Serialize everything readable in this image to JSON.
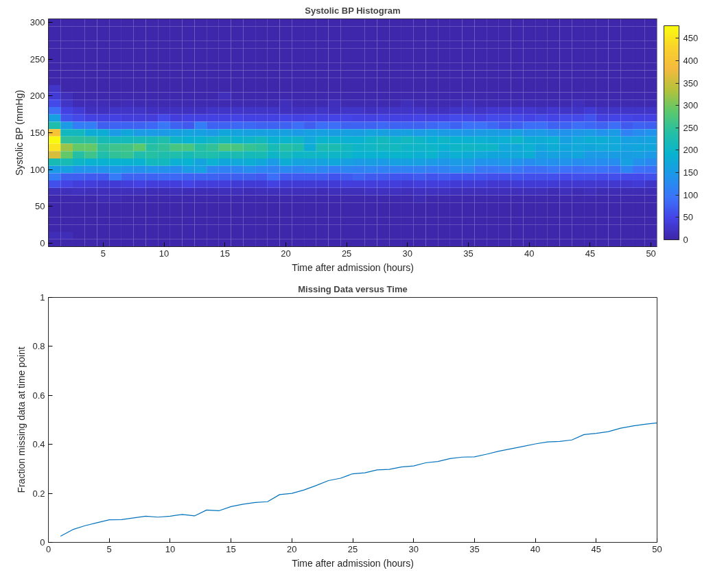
{
  "chart_data": [
    {
      "type": "heatmap",
      "title": "Systolic BP Histogram",
      "xlabel": "Time after admission (hours)",
      "ylabel": "Systolic BP (mmHg)",
      "x": [
        1,
        2,
        3,
        4,
        5,
        6,
        7,
        8,
        9,
        10,
        11,
        12,
        13,
        14,
        15,
        16,
        17,
        18,
        19,
        20,
        21,
        22,
        23,
        24,
        25,
        26,
        27,
        28,
        29,
        30,
        31,
        32,
        33,
        34,
        35,
        36,
        37,
        38,
        39,
        40,
        41,
        42,
        43,
        44,
        45,
        46,
        47,
        48,
        49,
        50
      ],
      "y": [
        300,
        290,
        280,
        270,
        260,
        250,
        240,
        230,
        220,
        210,
        200,
        190,
        180,
        170,
        160,
        150,
        140,
        130,
        120,
        110,
        100,
        90,
        80,
        70,
        60,
        50,
        40,
        30,
        20,
        10,
        0
      ],
      "cells": [
        [
          2,
          2,
          2,
          2,
          2,
          2,
          2,
          2,
          2,
          2,
          2,
          2,
          2,
          2,
          2,
          2,
          2,
          2,
          2,
          2,
          2,
          2,
          2,
          2,
          2,
          2,
          2,
          2,
          2,
          2,
          2,
          2,
          2,
          2,
          2,
          2,
          2,
          2,
          2,
          2,
          2,
          2,
          2,
          2,
          2,
          2,
          2,
          2,
          2,
          2
        ],
        [
          2,
          2,
          2,
          2,
          2,
          2,
          2,
          2,
          2,
          2,
          2,
          2,
          2,
          2,
          2,
          2,
          2,
          2,
          2,
          2,
          2,
          2,
          2,
          2,
          2,
          2,
          2,
          2,
          2,
          2,
          2,
          2,
          2,
          2,
          2,
          2,
          2,
          2,
          2,
          2,
          2,
          2,
          2,
          2,
          2,
          2,
          2,
          2,
          2,
          2
        ],
        [
          2,
          2,
          2,
          2,
          2,
          2,
          2,
          2,
          2,
          2,
          2,
          2,
          2,
          2,
          2,
          2,
          2,
          2,
          2,
          2,
          2,
          2,
          2,
          2,
          2,
          2,
          2,
          2,
          2,
          2,
          2,
          2,
          2,
          2,
          2,
          2,
          2,
          2,
          2,
          2,
          2,
          2,
          2,
          2,
          2,
          2,
          2,
          2,
          2,
          2
        ],
        [
          2,
          2,
          2,
          2,
          2,
          2,
          2,
          2,
          2,
          2,
          2,
          2,
          2,
          2,
          2,
          2,
          2,
          2,
          2,
          2,
          2,
          2,
          2,
          2,
          2,
          2,
          2,
          2,
          2,
          2,
          2,
          2,
          2,
          2,
          2,
          2,
          2,
          2,
          2,
          2,
          2,
          2,
          2,
          2,
          2,
          2,
          2,
          2,
          2,
          2
        ],
        [
          2,
          2,
          2,
          2,
          2,
          2,
          2,
          2,
          2,
          2,
          2,
          2,
          2,
          2,
          2,
          2,
          2,
          2,
          2,
          2,
          2,
          2,
          2,
          2,
          2,
          2,
          2,
          2,
          2,
          2,
          2,
          2,
          2,
          2,
          2,
          2,
          2,
          2,
          2,
          2,
          2,
          2,
          2,
          2,
          2,
          2,
          2,
          2,
          2,
          2
        ],
        [
          2,
          2,
          2,
          2,
          2,
          2,
          2,
          2,
          2,
          2,
          2,
          2,
          2,
          2,
          2,
          2,
          2,
          2,
          2,
          2,
          2,
          2,
          2,
          2,
          2,
          2,
          2,
          2,
          2,
          2,
          2,
          2,
          2,
          2,
          2,
          2,
          2,
          2,
          2,
          2,
          2,
          2,
          2,
          2,
          2,
          2,
          2,
          2,
          2,
          2
        ],
        [
          2,
          2,
          2,
          2,
          2,
          2,
          2,
          2,
          2,
          2,
          2,
          2,
          2,
          2,
          2,
          2,
          2,
          2,
          2,
          2,
          2,
          2,
          2,
          2,
          2,
          2,
          2,
          2,
          2,
          2,
          2,
          2,
          2,
          2,
          2,
          2,
          2,
          2,
          2,
          2,
          2,
          2,
          2,
          2,
          2,
          2,
          2,
          2,
          2,
          2
        ],
        [
          2,
          2,
          2,
          2,
          2,
          2,
          2,
          2,
          2,
          2,
          2,
          2,
          2,
          2,
          2,
          2,
          2,
          2,
          2,
          2,
          2,
          2,
          2,
          2,
          2,
          2,
          2,
          2,
          2,
          2,
          2,
          2,
          2,
          2,
          2,
          2,
          2,
          2,
          2,
          2,
          2,
          2,
          2,
          2,
          2,
          2,
          2,
          2,
          2,
          2
        ],
        [
          2,
          2,
          2,
          2,
          2,
          2,
          2,
          2,
          2,
          2,
          2,
          2,
          2,
          2,
          2,
          2,
          2,
          2,
          2,
          2,
          2,
          2,
          2,
          2,
          2,
          2,
          2,
          2,
          2,
          2,
          2,
          2,
          2,
          2,
          2,
          2,
          2,
          2,
          2,
          2,
          2,
          2,
          2,
          2,
          2,
          2,
          2,
          2,
          2,
          2
        ],
        [
          25,
          3,
          3,
          3,
          3,
          3,
          3,
          3,
          3,
          3,
          3,
          3,
          3,
          3,
          3,
          3,
          3,
          3,
          3,
          3,
          3,
          3,
          3,
          3,
          3,
          3,
          3,
          3,
          3,
          3,
          3,
          3,
          3,
          3,
          3,
          3,
          3,
          3,
          3,
          3,
          3,
          3,
          3,
          3,
          3,
          3,
          3,
          3,
          3,
          3
        ],
        [
          35,
          15,
          5,
          5,
          5,
          5,
          5,
          5,
          5,
          5,
          5,
          5,
          5,
          5,
          15,
          5,
          5,
          5,
          5,
          5,
          5,
          5,
          5,
          5,
          5,
          5,
          5,
          5,
          5,
          5,
          5,
          5,
          5,
          5,
          5,
          5,
          5,
          5,
          5,
          5,
          5,
          5,
          5,
          5,
          5,
          5,
          5,
          5,
          5,
          5
        ],
        [
          55,
          25,
          12,
          12,
          12,
          8,
          12,
          8,
          8,
          8,
          8,
          8,
          8,
          8,
          8,
          8,
          8,
          8,
          8,
          15,
          8,
          8,
          8,
          15,
          8,
          8,
          8,
          8,
          8,
          15,
          8,
          8,
          8,
          8,
          15,
          8,
          8,
          8,
          8,
          8,
          8,
          8,
          8,
          15,
          8,
          8,
          8,
          8,
          8,
          8
        ],
        [
          90,
          45,
          35,
          20,
          20,
          25,
          25,
          25,
          20,
          20,
          20,
          20,
          20,
          25,
          25,
          25,
          25,
          25,
          25,
          20,
          20,
          20,
          25,
          20,
          25,
          25,
          20,
          25,
          25,
          25,
          25,
          20,
          20,
          25,
          25,
          25,
          30,
          30,
          30,
          30,
          25,
          30,
          25,
          25,
          35,
          25,
          25,
          25,
          25,
          25
        ],
        [
          160,
          65,
          55,
          45,
          45,
          45,
          40,
          40,
          40,
          55,
          40,
          45,
          45,
          45,
          45,
          50,
          45,
          45,
          45,
          50,
          45,
          50,
          45,
          50,
          50,
          45,
          45,
          50,
          45,
          45,
          50,
          50,
          50,
          55,
          55,
          50,
          55,
          55,
          55,
          50,
          55,
          50,
          55,
          55,
          65,
          45,
          50,
          50,
          45,
          45
        ],
        [
          230,
          150,
          110,
          110,
          75,
          80,
          80,
          80,
          85,
          100,
          80,
          70,
          110,
          80,
          80,
          85,
          85,
          80,
          80,
          80,
          90,
          75,
          90,
          90,
          80,
          80,
          80,
          85,
          80,
          80,
          80,
          85,
          90,
          80,
          95,
          95,
          85,
          70,
          80,
          90,
          90,
          80,
          80,
          90,
          85,
          80,
          90,
          70,
          80,
          75
        ],
        [
          400,
          210,
          210,
          180,
          180,
          150,
          170,
          150,
          150,
          150,
          160,
          165,
          160,
          150,
          170,
          165,
          160,
          160,
          160,
          160,
          150,
          160,
          160,
          155,
          160,
          155,
          165,
          160,
          155,
          160,
          150,
          160,
          150,
          150,
          145,
          150,
          155,
          150,
          160,
          145,
          150,
          140,
          140,
          145,
          150,
          140,
          150,
          115,
          130,
          140
        ],
        [
          475,
          250,
          245,
          245,
          220,
          215,
          215,
          220,
          220,
          230,
          200,
          190,
          195,
          205,
          210,
          195,
          200,
          210,
          190,
          195,
          200,
          175,
          195,
          195,
          185,
          190,
          200,
          210,
          200,
          210,
          200,
          190,
          200,
          190,
          190,
          185,
          180,
          185,
          200,
          180,
          180,
          185,
          160,
          175,
          180,
          180,
          175,
          160,
          160,
          165
        ],
        [
          450,
          320,
          290,
          290,
          250,
          260,
          265,
          285,
          240,
          250,
          270,
          270,
          240,
          250,
          275,
          270,
          255,
          245,
          220,
          240,
          230,
          180,
          225,
          225,
          210,
          200,
          205,
          210,
          210,
          200,
          200,
          200,
          190,
          200,
          205,
          200,
          200,
          175,
          175,
          185,
          170,
          180,
          170,
          175,
          170,
          175,
          175,
          165,
          170,
          170
        ],
        [
          360,
          290,
          240,
          260,
          230,
          250,
          255,
          230,
          240,
          230,
          230,
          220,
          230,
          230,
          220,
          225,
          215,
          220,
          200,
          215,
          200,
          205,
          200,
          200,
          200,
          190,
          190,
          190,
          195,
          195,
          185,
          195,
          175,
          185,
          180,
          175,
          170,
          170,
          175,
          180,
          155,
          165,
          160,
          170,
          150,
          150,
          155,
          155,
          160,
          150
        ],
        [
          220,
          220,
          200,
          190,
          190,
          190,
          190,
          190,
          210,
          210,
          185,
          190,
          165,
          185,
          170,
          175,
          180,
          170,
          150,
          180,
          165,
          160,
          165,
          170,
          160,
          150,
          155,
          150,
          160,
          160,
          160,
          150,
          145,
          150,
          150,
          140,
          140,
          145,
          140,
          130,
          140,
          135,
          140,
          130,
          135,
          130,
          130,
          160,
          135,
          125
        ],
        [
          150,
          160,
          140,
          140,
          140,
          145,
          140,
          135,
          140,
          135,
          130,
          150,
          160,
          120,
          115,
          120,
          130,
          120,
          115,
          125,
          120,
          130,
          120,
          110,
          120,
          115,
          120,
          115,
          115,
          115,
          115,
          110,
          115,
          130,
          125,
          100,
          100,
          110,
          100,
          90,
          90,
          100,
          95,
          90,
          95,
          95,
          90,
          120,
          95,
          90
        ],
        [
          110,
          75,
          75,
          70,
          70,
          105,
          80,
          80,
          80,
          85,
          85,
          80,
          80,
          80,
          75,
          75,
          75,
          70,
          90,
          70,
          70,
          70,
          70,
          65,
          70,
          80,
          70,
          70,
          65,
          65,
          70,
          65,
          70,
          65,
          65,
          65,
          60,
          60,
          65,
          60,
          60,
          60,
          55,
          60,
          60,
          55,
          60,
          55,
          55,
          60
        ],
        [
          60,
          50,
          40,
          40,
          35,
          35,
          40,
          45,
          40,
          40,
          40,
          50,
          40,
          40,
          40,
          35,
          35,
          35,
          45,
          35,
          35,
          35,
          35,
          35,
          40,
          40,
          40,
          40,
          40,
          35,
          40,
          40,
          40,
          35,
          35,
          35,
          30,
          30,
          35,
          35,
          35,
          35,
          30,
          30,
          30,
          30,
          30,
          30,
          35,
          25
        ],
        [
          15,
          15,
          20,
          15,
          15,
          15,
          15,
          15,
          12,
          12,
          15,
          12,
          12,
          12,
          15,
          15,
          12,
          15,
          15,
          15,
          15,
          15,
          12,
          15,
          15,
          15,
          20,
          20,
          20,
          15,
          20,
          20,
          20,
          15,
          15,
          15,
          15,
          15,
          15,
          15,
          15,
          10,
          15,
          10,
          15,
          10,
          10,
          10,
          10,
          10
        ],
        [
          5,
          5,
          5,
          5,
          10,
          10,
          5,
          5,
          5,
          5,
          5,
          5,
          5,
          5,
          5,
          5,
          5,
          5,
          5,
          5,
          5,
          5,
          5,
          5,
          5,
          5,
          5,
          5,
          5,
          5,
          10,
          5,
          5,
          5,
          5,
          5,
          5,
          5,
          5,
          5,
          5,
          5,
          5,
          5,
          5,
          5,
          5,
          5,
          5,
          5
        ],
        [
          3,
          3,
          3,
          3,
          3,
          3,
          3,
          3,
          3,
          3,
          3,
          3,
          3,
          3,
          3,
          3,
          3,
          3,
          3,
          3,
          3,
          3,
          3,
          3,
          3,
          3,
          3,
          3,
          3,
          3,
          3,
          3,
          3,
          3,
          3,
          3,
          3,
          3,
          3,
          3,
          3,
          3,
          3,
          3,
          3,
          3,
          3,
          3,
          3,
          3
        ],
        [
          3,
          3,
          3,
          3,
          3,
          3,
          3,
          3,
          3,
          3,
          3,
          3,
          3,
          3,
          3,
          3,
          3,
          3,
          3,
          3,
          3,
          3,
          3,
          3,
          3,
          3,
          3,
          3,
          3,
          3,
          3,
          3,
          3,
          3,
          3,
          3,
          3,
          3,
          3,
          3,
          3,
          3,
          3,
          3,
          3,
          3,
          3,
          3,
          3,
          3
        ],
        [
          3,
          3,
          3,
          3,
          3,
          3,
          3,
          3,
          3,
          3,
          3,
          3,
          3,
          3,
          3,
          3,
          3,
          3,
          3,
          3,
          3,
          3,
          3,
          3,
          3,
          3,
          3,
          3,
          3,
          3,
          3,
          3,
          3,
          3,
          3,
          3,
          3,
          3,
          3,
          3,
          3,
          3,
          3,
          3,
          3,
          3,
          3,
          3,
          3,
          3
        ],
        [
          3,
          3,
          3,
          3,
          3,
          3,
          3,
          3,
          3,
          3,
          3,
          3,
          3,
          3,
          3,
          3,
          3,
          3,
          3,
          3,
          3,
          3,
          3,
          3,
          3,
          3,
          3,
          3,
          3,
          3,
          3,
          3,
          3,
          3,
          3,
          3,
          3,
          3,
          3,
          3,
          3,
          3,
          3,
          3,
          3,
          3,
          3,
          3,
          3,
          3
        ],
        [
          12,
          12,
          3,
          3,
          3,
          3,
          3,
          3,
          3,
          3,
          3,
          3,
          3,
          3,
          3,
          3,
          3,
          3,
          3,
          3,
          3,
          3,
          3,
          3,
          3,
          3,
          3,
          3,
          3,
          3,
          3,
          3,
          3,
          3,
          3,
          3,
          3,
          3,
          3,
          3,
          3,
          3,
          3,
          3,
          3,
          3,
          3,
          3,
          3,
          3
        ],
        [
          3,
          3,
          3,
          3,
          3,
          3,
          3,
          3,
          3,
          3,
          3,
          3,
          3,
          3,
          3,
          3,
          3,
          3,
          3,
          3,
          3,
          3,
          3,
          3,
          3,
          3,
          3,
          3,
          3,
          3,
          3,
          3,
          3,
          3,
          3,
          3,
          3,
          3,
          3,
          3,
          3,
          3,
          3,
          3,
          3,
          3,
          3,
          3,
          3,
          3
        ]
      ],
      "clim": [
        0,
        478
      ],
      "cticks": [
        0,
        50,
        100,
        150,
        200,
        250,
        300,
        350,
        400,
        450
      ],
      "xlim": [
        0.5,
        50.5
      ],
      "ylim": [
        -5,
        305
      ],
      "xticks": [
        5,
        10,
        15,
        20,
        25,
        30,
        35,
        40,
        45,
        50
      ],
      "yticks": [
        0,
        50,
        100,
        150,
        200,
        250,
        300
      ]
    },
    {
      "type": "line",
      "title": "Missing Data versus Time",
      "xlabel": "Time after admission (hours)",
      "ylabel": "Fraction missing data at time point",
      "color": "#0072bd",
      "x": [
        1,
        2,
        3,
        4,
        5,
        6,
        7,
        8,
        9,
        10,
        11,
        12,
        13,
        14,
        15,
        16,
        17,
        18,
        19,
        20,
        21,
        22,
        23,
        24,
        25,
        26,
        27,
        28,
        29,
        30,
        31,
        32,
        33,
        34,
        35,
        36,
        37,
        38,
        39,
        40,
        41,
        42,
        43,
        44,
        45,
        46,
        47,
        48,
        49,
        50
      ],
      "values": [
        0.025,
        0.052,
        0.068,
        0.08,
        0.092,
        0.093,
        0.1,
        0.107,
        0.103,
        0.107,
        0.114,
        0.108,
        0.132,
        0.129,
        0.146,
        0.156,
        0.163,
        0.166,
        0.195,
        0.2,
        0.214,
        0.232,
        0.252,
        0.262,
        0.28,
        0.284,
        0.296,
        0.298,
        0.308,
        0.312,
        0.325,
        0.33,
        0.342,
        0.348,
        0.349,
        0.36,
        0.372,
        0.382,
        0.392,
        0.402,
        0.41,
        0.412,
        0.418,
        0.44,
        0.445,
        0.452,
        0.466,
        0.475,
        0.482,
        0.488
      ],
      "xlim": [
        0,
        50
      ],
      "ylim": [
        0,
        1
      ],
      "xticks": [
        0,
        5,
        10,
        15,
        20,
        25,
        30,
        35,
        40,
        45,
        50
      ],
      "yticks": [
        0,
        0.2,
        0.4,
        0.6,
        0.8,
        1
      ]
    }
  ]
}
